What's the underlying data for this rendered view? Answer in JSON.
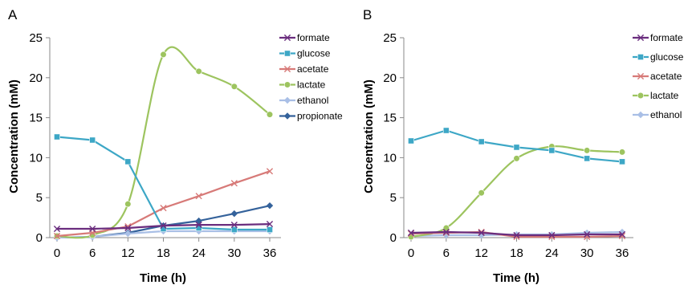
{
  "figure": {
    "panels": [
      "A",
      "B"
    ]
  },
  "chart_data": [
    {
      "type": "line",
      "panel_label": "A",
      "xlabel": "Time (h)",
      "ylabel": "Concentration (mM)",
      "x": [
        0,
        6,
        12,
        18,
        24,
        30,
        36
      ],
      "xticks": [
        "0",
        "6",
        "12",
        "18",
        "24",
        "30",
        "36"
      ],
      "yticks": [
        "0",
        "5",
        "10",
        "15",
        "20",
        "25"
      ],
      "xlim": [
        0,
        36
      ],
      "ylim": [
        0,
        25
      ],
      "grid": false,
      "legend_position": "right",
      "series": [
        {
          "name": "formate",
          "color": "#6a2d7e",
          "marker": "x",
          "smooth": false,
          "values": [
            1.1,
            1.1,
            1.2,
            1.5,
            1.6,
            1.6,
            1.7
          ]
        },
        {
          "name": "glucose",
          "color": "#3da7c6",
          "marker": "square",
          "smooth": false,
          "values": [
            12.6,
            12.2,
            9.5,
            1.1,
            1.2,
            1.0,
            1.0
          ]
        },
        {
          "name": "acetate",
          "color": "#d77a78",
          "marker": "x",
          "smooth": false,
          "values": [
            0.2,
            0.6,
            1.4,
            3.7,
            5.2,
            6.8,
            8.3
          ]
        },
        {
          "name": "lactate",
          "color": "#9dc45f",
          "marker": "circle",
          "smooth": true,
          "values": [
            0.2,
            0.3,
            4.2,
            22.9,
            20.8,
            18.9,
            15.4
          ]
        },
        {
          "name": "ethanol",
          "color": "#a9bfe6",
          "marker": "diamond",
          "smooth": false,
          "values": [
            0.0,
            0.1,
            0.5,
            0.8,
            0.8,
            0.8,
            0.8
          ]
        },
        {
          "name": "propionate",
          "color": "#34629b",
          "marker": "diamond",
          "smooth": false,
          "values": [
            0.0,
            0.1,
            0.6,
            1.5,
            2.1,
            3.0,
            4.0
          ]
        }
      ]
    },
    {
      "type": "line",
      "panel_label": "B",
      "xlabel": "Time (h)",
      "ylabel": "Concentration (mM)",
      "x": [
        0,
        6,
        12,
        18,
        24,
        30,
        36
      ],
      "xticks": [
        "0",
        "6",
        "12",
        "18",
        "24",
        "30",
        "36"
      ],
      "yticks": [
        "0",
        "5",
        "10",
        "15",
        "20",
        "25"
      ],
      "xlim": [
        0,
        36
      ],
      "ylim": [
        0,
        25
      ],
      "grid": false,
      "legend_position": "right",
      "series": [
        {
          "name": "formate",
          "color": "#6a2d7e",
          "marker": "x",
          "smooth": false,
          "values": [
            0.6,
            0.7,
            0.6,
            0.3,
            0.3,
            0.4,
            0.4
          ]
        },
        {
          "name": "glucose",
          "color": "#3da7c6",
          "marker": "square",
          "smooth": false,
          "values": [
            12.1,
            13.4,
            12.0,
            11.3,
            10.9,
            9.9,
            9.5
          ]
        },
        {
          "name": "acetate",
          "color": "#d77a78",
          "marker": "x",
          "smooth": false,
          "values": [
            0.5,
            0.6,
            0.7,
            0.1,
            0.1,
            0.1,
            0.2
          ]
        },
        {
          "name": "lactate",
          "color": "#9dc45f",
          "marker": "circle",
          "smooth": true,
          "values": [
            0.1,
            1.2,
            5.6,
            9.9,
            11.4,
            10.9,
            10.7
          ]
        },
        {
          "name": "ethanol",
          "color": "#a9bfe6",
          "marker": "diamond",
          "smooth": false,
          "values": [
            0.2,
            0.3,
            0.3,
            0.4,
            0.4,
            0.6,
            0.7
          ]
        }
      ]
    }
  ]
}
